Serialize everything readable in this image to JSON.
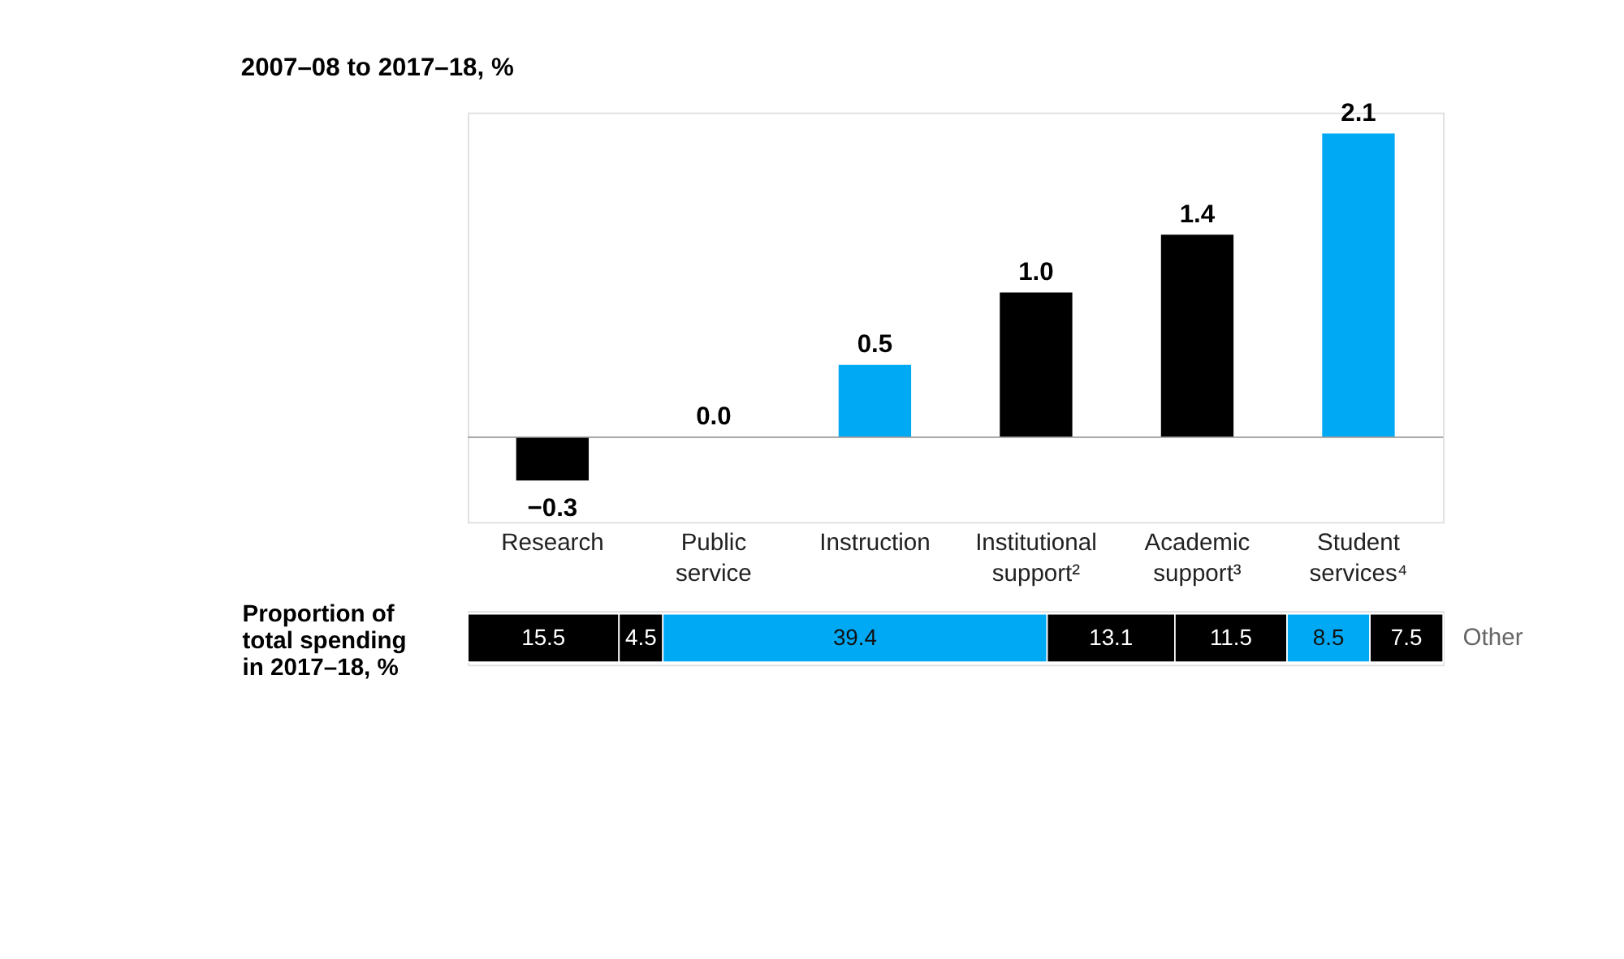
{
  "chart_data": [
    {
      "type": "bar",
      "title": "2007–08 to 2017–18, %",
      "categories": [
        "Research",
        "Public service",
        "Instruction",
        "Institutional support²",
        "Academic support³",
        "Student services⁴"
      ],
      "values": [
        -0.3,
        0.0,
        0.5,
        1.0,
        1.4,
        2.1
      ],
      "colors": [
        "#000000",
        "#000000",
        "#00a9f4",
        "#000000",
        "#000000",
        "#00a9f4"
      ],
      "value_labels": [
        "−0.3",
        "0.0",
        "0.5",
        "1.0",
        "1.4",
        "2.1"
      ]
    },
    {
      "type": "bar",
      "orientation": "horizontal",
      "stacked": true,
      "ylabel": "Proportion of total spending in 2017–18, %",
      "categories": [
        null
      ],
      "data_labels": true,
      "series": [
        {
          "color": "#000000",
          "values": [
            15.5
          ]
        },
        {
          "color": "#000000",
          "values": [
            4.5
          ]
        },
        {
          "color": "#00a9f4",
          "values": [
            39.4
          ]
        },
        {
          "color": "#000000",
          "values": [
            13.1
          ]
        },
        {
          "color": "#000000",
          "values": [
            11.5
          ]
        },
        {
          "color": "#00a9f4",
          "values": [
            8.5
          ]
        },
        {
          "name": "Other",
          "color": "#000000",
          "values": [
            7.5
          ]
        }
      ]
    }
  ]
}
